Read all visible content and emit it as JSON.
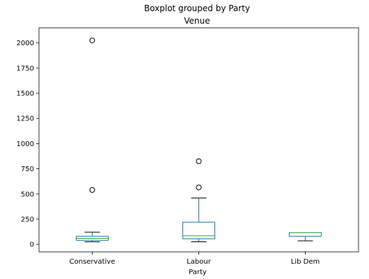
{
  "chart_data": {
    "type": "box",
    "suptitle": "Boxplot grouped by Party",
    "title": "Venue",
    "xlabel": "Party",
    "ylabel": "",
    "categories": [
      "Conservative",
      "Labour",
      "Lib Dem"
    ],
    "ylim": [
      -75,
      2150
    ],
    "yticks": [
      0,
      250,
      500,
      750,
      1000,
      1250,
      1500,
      1750,
      2000
    ],
    "ytick_labels": [
      "0",
      "250",
      "500",
      "750",
      "1000",
      "1250",
      "1500",
      "1750",
      "2000"
    ],
    "grid": false,
    "boxes": [
      {
        "category": "Conservative",
        "whisker_low": 25,
        "q1": 40,
        "median": 60,
        "q3": 80,
        "whisker_high": 120,
        "outliers": [
          540,
          2025
        ]
      },
      {
        "category": "Labour",
        "whisker_low": 25,
        "q1": 55,
        "median": 85,
        "q3": 220,
        "whisker_high": 460,
        "outliers": [
          565,
          825
        ]
      },
      {
        "category": "Lib Dem",
        "whisker_low": 35,
        "q1": 80,
        "median": 115,
        "q3": 115,
        "whisker_high": 115,
        "outliers": []
      }
    ],
    "colors": {
      "box": "#1f77b4",
      "median": "#2ca02c",
      "whisker": "#1f77b4",
      "cap": "#000000",
      "outlier": "#000000"
    }
  }
}
